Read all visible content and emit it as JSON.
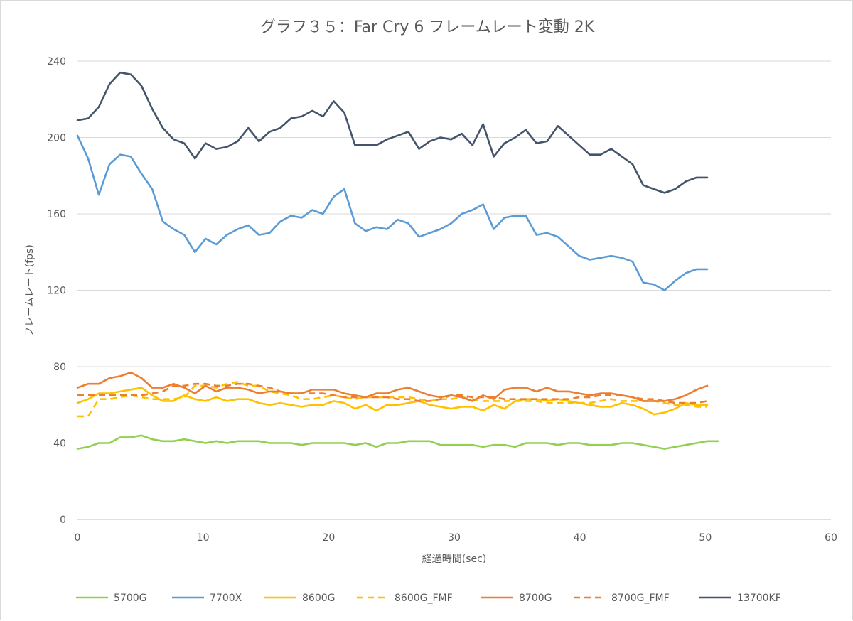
{
  "chart_data": {
    "type": "line",
    "title": "グラフ３５：Far Cry 6 フレームレート変動 2K",
    "xlabel": "経過時間(sec)",
    "ylabel": "フレームレート(fps)",
    "xlim": [
      0,
      60
    ],
    "ylim": [
      0,
      240
    ],
    "xticks": [
      "0",
      "10",
      "20",
      "30",
      "40",
      "50",
      "60"
    ],
    "yticks": [
      "0",
      "40",
      "80",
      "120",
      "160",
      "200",
      "240"
    ],
    "grid": "horizontal",
    "legend_position": "bottom",
    "x_step": 0.85,
    "series": [
      {
        "name": "5700G",
        "color": "#92d050",
        "dash": false,
        "values": [
          37,
          38,
          40,
          40,
          43,
          43,
          44,
          42,
          41,
          41,
          42,
          41,
          40,
          41,
          40,
          41,
          41,
          41,
          40,
          40,
          40,
          39,
          40,
          40,
          40,
          40,
          39,
          40,
          38,
          40,
          40,
          41,
          41,
          41,
          39,
          39,
          39,
          39,
          38,
          39,
          39,
          38,
          40,
          40,
          40,
          39,
          40,
          40,
          39,
          39,
          39,
          40,
          40,
          39,
          38,
          37,
          38,
          39,
          40,
          41,
          41
        ]
      },
      {
        "name": "7700X",
        "color": "#5b9bd5",
        "dash": false,
        "values": [
          201,
          189,
          170,
          186,
          191,
          190,
          181,
          173,
          156,
          152,
          149,
          140,
          147,
          144,
          149,
          152,
          154,
          149,
          150,
          156,
          159,
          158,
          162,
          160,
          169,
          173,
          155,
          151,
          153,
          152,
          157,
          155,
          148,
          150,
          152,
          155,
          160,
          162,
          165,
          152,
          158,
          159,
          159,
          149,
          150,
          148,
          143,
          138,
          136,
          137,
          138,
          137,
          135,
          124,
          123,
          120,
          125,
          129,
          131,
          131
        ]
      },
      {
        "name": "8600G",
        "color": "#ffc000",
        "dash": false,
        "values": [
          61,
          63,
          66,
          66,
          67,
          68,
          69,
          65,
          62,
          62,
          65,
          63,
          62,
          64,
          62,
          63,
          63,
          61,
          60,
          61,
          60,
          59,
          60,
          60,
          62,
          61,
          58,
          60,
          57,
          60,
          60,
          61,
          62,
          60,
          59,
          58,
          59,
          59,
          57,
          60,
          58,
          62,
          63,
          63,
          62,
          63,
          62,
          61,
          60,
          59,
          59,
          61,
          60,
          58,
          55,
          56,
          58,
          61,
          60,
          60
        ]
      },
      {
        "name": "8600G_FMF",
        "color": "#ffc000",
        "dash": true,
        "values": [
          54,
          54,
          63,
          63,
          64,
          65,
          64,
          63,
          63,
          63,
          64,
          70,
          70,
          69,
          71,
          72,
          70,
          70,
          67,
          66,
          65,
          63,
          63,
          64,
          65,
          64,
          63,
          64,
          64,
          64,
          64,
          64,
          63,
          62,
          63,
          63,
          64,
          63,
          62,
          62,
          62,
          62,
          62,
          62,
          61,
          61,
          61,
          61,
          61,
          62,
          63,
          62,
          62,
          62,
          62,
          61,
          60,
          60,
          59,
          59
        ]
      },
      {
        "name": "8700G",
        "color": "#ed7d31",
        "dash": false,
        "values": [
          69,
          71,
          71,
          74,
          75,
          77,
          74,
          69,
          69,
          71,
          69,
          66,
          70,
          67,
          69,
          69,
          68,
          66,
          67,
          67,
          66,
          66,
          68,
          68,
          68,
          66,
          65,
          64,
          66,
          66,
          68,
          69,
          67,
          65,
          64,
          65,
          64,
          62,
          65,
          63,
          68,
          69,
          69,
          67,
          69,
          67,
          67,
          66,
          65,
          66,
          66,
          65,
          64,
          62,
          62,
          62,
          63,
          65,
          68,
          70
        ]
      },
      {
        "name": "8700G_FMF",
        "color": "#ed7d31",
        "dash": true,
        "values": [
          65,
          65,
          65,
          65,
          65,
          65,
          65,
          66,
          67,
          70,
          70,
          71,
          71,
          70,
          70,
          71,
          71,
          70,
          69,
          67,
          66,
          66,
          66,
          66,
          65,
          64,
          64,
          64,
          64,
          64,
          63,
          63,
          62,
          62,
          63,
          65,
          65,
          64,
          64,
          64,
          63,
          63,
          63,
          63,
          63,
          63,
          63,
          64,
          64,
          65,
          65,
          65,
          64,
          63,
          63,
          62,
          61,
          61,
          61,
          62
        ]
      },
      {
        "name": "13700KF",
        "color": "#44546a",
        "dash": false,
        "values": [
          209,
          210,
          216,
          228,
          234,
          233,
          227,
          215,
          205,
          199,
          197,
          189,
          197,
          194,
          195,
          198,
          205,
          198,
          203,
          205,
          210,
          211,
          214,
          211,
          219,
          213,
          196,
          196,
          196,
          199,
          201,
          203,
          194,
          198,
          200,
          199,
          202,
          196,
          207,
          190,
          197,
          200,
          204,
          197,
          198,
          206,
          201,
          196,
          191,
          191,
          194,
          190,
          186,
          175,
          173,
          171,
          173,
          177,
          179,
          179
        ]
      }
    ]
  }
}
